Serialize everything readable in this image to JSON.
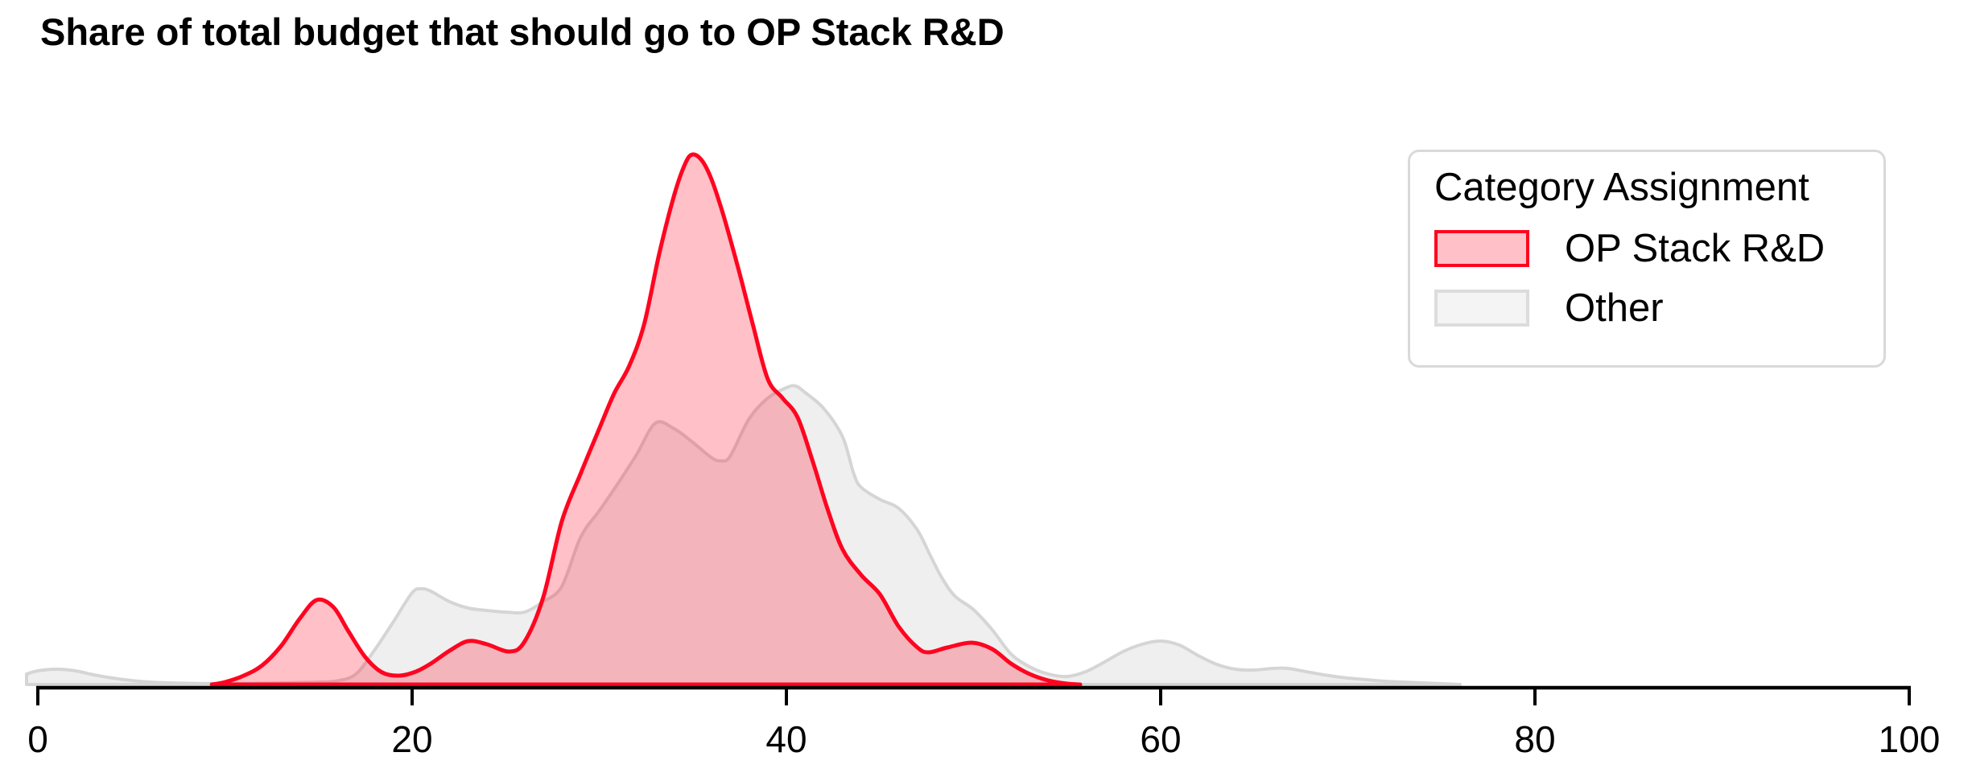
{
  "title": "Share of total budget that should go to OP Stack R&D",
  "legend": {
    "title": "Category Assignment",
    "items": [
      {
        "label": "OP Stack R&D"
      },
      {
        "label": "Other"
      }
    ]
  },
  "x_axis": {
    "ticks": [
      0,
      20,
      40,
      60,
      80,
      100
    ],
    "range": [
      0,
      100
    ]
  },
  "colors": {
    "op_stack_line": "#ff0420",
    "op_stack_fill": "rgba(255,4,32,0.25)",
    "other_line": "#d5d5d5",
    "other_fill": "rgba(182,182,182,0.22)",
    "axis": "#000000",
    "legend_border": "#d9d9d9",
    "other_swatch_border": "#dcdcdc",
    "other_swatch_fill": "#f4f4f4"
  },
  "chart_data": {
    "type": "area",
    "title": "Share of total budget that should go to OP Stack R&D",
    "xlabel": "",
    "ylabel": "",
    "xlim": [
      0,
      100
    ],
    "grid": false,
    "legend_title": "Category Assignment",
    "legend_position": "upper right",
    "y_units": "kernel density, arbitrary units (no y-axis shown); values are curve heights in px above baseline",
    "series": [
      {
        "name": "OP Stack R&D",
        "line_color": "#ff0420",
        "fill_color": "rgba(255,4,32,0.25)",
        "points": [
          [
            9.3,
            0
          ],
          [
            10,
            3
          ],
          [
            11,
            11
          ],
          [
            12,
            24
          ],
          [
            13,
            48
          ],
          [
            14,
            82
          ],
          [
            14.9,
            105
          ],
          [
            15.8,
            96
          ],
          [
            16.6,
            66
          ],
          [
            17.5,
            34
          ],
          [
            18.4,
            15
          ],
          [
            19.3,
            11
          ],
          [
            20.2,
            16
          ],
          [
            21,
            26
          ],
          [
            22,
            42
          ],
          [
            23,
            54
          ],
          [
            24,
            50
          ],
          [
            25.2,
            41
          ],
          [
            26,
            53
          ],
          [
            27,
            108
          ],
          [
            28,
            203
          ],
          [
            29,
            262
          ],
          [
            30,
            318
          ],
          [
            30.8,
            362
          ],
          [
            31.6,
            396
          ],
          [
            32.4,
            448
          ],
          [
            33.2,
            535
          ],
          [
            34,
            608
          ],
          [
            34.6,
            648
          ],
          [
            35,
            659
          ],
          [
            35.5,
            651
          ],
          [
            36,
            628
          ],
          [
            36.6,
            586
          ],
          [
            37.4,
            520
          ],
          [
            38.2,
            448
          ],
          [
            39,
            380
          ],
          [
            39.8,
            356
          ],
          [
            40.6,
            332
          ],
          [
            41.4,
            278
          ],
          [
            42.2,
            218
          ],
          [
            43,
            168
          ],
          [
            44,
            136
          ],
          [
            45,
            112
          ],
          [
            46,
            72
          ],
          [
            47,
            46
          ],
          [
            47.6,
            40
          ],
          [
            48.6,
            46
          ],
          [
            49.9,
            52
          ],
          [
            51,
            44
          ],
          [
            52,
            26
          ],
          [
            53,
            13
          ],
          [
            54,
            5
          ],
          [
            55,
            1
          ],
          [
            55.7,
            0
          ]
        ]
      },
      {
        "name": "Other",
        "line_color": "#d5d5d5",
        "fill_color": "rgba(182,182,182,0.22)",
        "points": [
          [
            -0.6,
            13
          ],
          [
            0,
            17
          ],
          [
            1,
            19
          ],
          [
            2,
            17
          ],
          [
            3,
            12
          ],
          [
            4,
            8
          ],
          [
            5,
            5
          ],
          [
            6,
            3
          ],
          [
            8,
            1.5
          ],
          [
            10,
            1
          ],
          [
            12,
            1.5
          ],
          [
            14,
            2.5
          ],
          [
            15,
            3
          ],
          [
            16,
            4.5
          ],
          [
            17,
            13
          ],
          [
            18,
            43
          ],
          [
            19,
            78
          ],
          [
            20,
            114
          ],
          [
            20.5,
            119
          ],
          [
            21,
            116
          ],
          [
            22,
            103
          ],
          [
            23,
            95
          ],
          [
            24,
            92
          ],
          [
            25,
            90
          ],
          [
            26,
            90
          ],
          [
            27,
            103
          ],
          [
            28,
            122
          ],
          [
            29,
            183
          ],
          [
            30,
            216
          ],
          [
            31,
            250
          ],
          [
            32,
            286
          ],
          [
            33,
            325
          ],
          [
            34,
            318
          ],
          [
            35,
            301
          ],
          [
            36,
            282
          ],
          [
            36.5,
            278
          ],
          [
            37,
            284
          ],
          [
            38,
            330
          ],
          [
            39,
            356
          ],
          [
            40,
            369
          ],
          [
            40.5,
            371
          ],
          [
            41,
            363
          ],
          [
            42,
            343
          ],
          [
            43,
            308
          ],
          [
            43.6,
            262
          ],
          [
            44,
            245
          ],
          [
            45,
            230
          ],
          [
            46,
            219
          ],
          [
            47,
            192
          ],
          [
            47.7,
            160
          ],
          [
            48.3,
            133
          ],
          [
            49,
            110
          ],
          [
            50,
            93
          ],
          [
            51,
            68
          ],
          [
            52,
            38
          ],
          [
            53,
            22
          ],
          [
            54,
            13
          ],
          [
            55,
            10
          ],
          [
            56,
            16
          ],
          [
            57,
            28
          ],
          [
            58,
            41
          ],
          [
            59,
            50
          ],
          [
            60,
            54
          ],
          [
            61,
            49
          ],
          [
            62,
            36
          ],
          [
            63,
            25
          ],
          [
            64,
            19
          ],
          [
            65,
            18
          ],
          [
            66,
            20
          ],
          [
            66.8,
            20
          ],
          [
            68,
            15
          ],
          [
            69,
            11
          ],
          [
            70,
            8
          ],
          [
            71,
            6
          ],
          [
            72,
            4
          ],
          [
            74,
            2
          ],
          [
            76,
            0
          ]
        ]
      }
    ]
  }
}
